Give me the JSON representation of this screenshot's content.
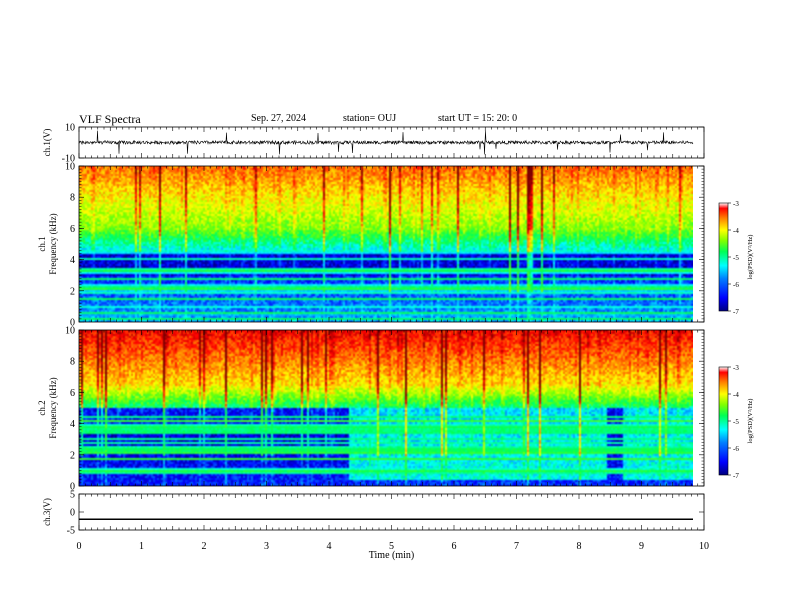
{
  "header": {
    "title": "VLF Spectra",
    "date": "Sep. 27, 2024",
    "station": "station= OUJ",
    "start": "start  UT =   15: 20: 0"
  },
  "chart_data": [
    {
      "type": "line",
      "name": "ch1-waveform",
      "ylabel": "ch.1(V)",
      "ylim": [
        -10,
        10
      ],
      "ytick_labels": [
        "10",
        "-10"
      ],
      "xlim": [
        0,
        10
      ],
      "baseline": 0
    },
    {
      "type": "heatmap",
      "name": "ch1-spectrogram",
      "ylabel": "ch.1\nFrequency (kHz)",
      "ylim": [
        0,
        10
      ],
      "yticks": [
        0,
        2,
        4,
        6,
        8,
        10
      ],
      "xlim": [
        0,
        9.83
      ],
      "colorbar": {
        "label": "log(PSD)(V²/Hz)",
        "range": [
          -7,
          -3
        ],
        "ticks": [
          "-3",
          "-4",
          "-5",
          "-6",
          "-7"
        ]
      },
      "colorbar_label": "log(PSD)(V²/Hz)"
    },
    {
      "type": "heatmap",
      "name": "ch2-spectrogram",
      "ylabel": "ch.2\nFrequency (kHz)",
      "ylim": [
        0,
        10
      ],
      "yticks": [
        0,
        2,
        4,
        6,
        8,
        10
      ],
      "xlim": [
        0,
        9.83
      ],
      "colorbar": {
        "label": "log(PSD)(V²/Hz)",
        "range": [
          -7,
          -3
        ],
        "ticks": [
          "-3",
          "-4",
          "-5",
          "-6",
          "-7"
        ]
      },
      "colorbar_label": "log(PSD)(V²/Hz)"
    },
    {
      "type": "line",
      "name": "ch3-waveform",
      "ylabel": "ch.3(V)",
      "ylim": [
        -5,
        5
      ],
      "ytick_labels": [
        "5",
        "0",
        "-5"
      ],
      "xlim": [
        0,
        10
      ],
      "baseline": -2
    }
  ],
  "xaxis": {
    "label": "Time  (min)",
    "ticks": [
      0,
      1,
      2,
      3,
      4,
      5,
      6,
      7,
      8,
      9,
      10
    ]
  },
  "colors": {
    "colormap": [
      "#00007f",
      "#0000ff",
      "#007fff",
      "#00ffff",
      "#00ff55",
      "#7fff00",
      "#ffff00",
      "#ff7f00",
      "#ff0000",
      "#7f0000"
    ]
  }
}
